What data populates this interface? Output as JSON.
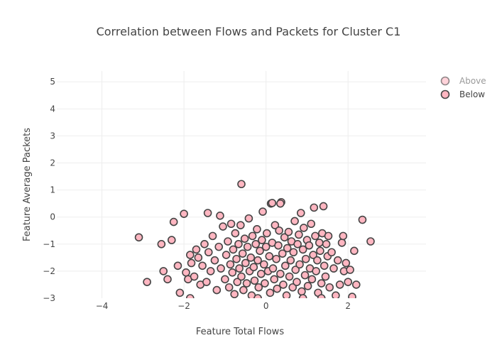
{
  "chart_data": {
    "type": "scatter",
    "title": "Correlation between Flows and Packets for Cluster C1",
    "xlabel": "Feature Total Flows",
    "ylabel": "Feature Average Packets",
    "xlim": [
      -5.1,
      3.9
    ],
    "ylim": [
      -3,
      5.4
    ],
    "xticks": [
      -4,
      -2,
      0,
      2
    ],
    "yticks": [
      -3,
      -2,
      -1,
      0,
      1,
      2,
      3,
      4,
      5
    ],
    "grid": true,
    "legend_position": "top-right",
    "marker_fill": "#ffb6c1",
    "marker_edge": "#444444",
    "series": [
      {
        "name": "Above",
        "opacity": 0.6,
        "points": []
      },
      {
        "name": "Below",
        "opacity": 1,
        "points": [
          [
            -3.1,
            -0.75
          ],
          [
            -2.9,
            -2.4
          ],
          [
            -2.55,
            -1.0
          ],
          [
            -2.5,
            -2.0
          ],
          [
            -2.4,
            -2.3
          ],
          [
            -2.3,
            -0.85
          ],
          [
            -2.25,
            -0.18
          ],
          [
            -2.15,
            -1.8
          ],
          [
            -2.1,
            -2.8
          ],
          [
            -2.0,
            0.12
          ],
          [
            -1.95,
            -2.05
          ],
          [
            -1.9,
            -2.3
          ],
          [
            -1.85,
            -1.4
          ],
          [
            -1.82,
            -1.7
          ],
          [
            -1.75,
            -2.2
          ],
          [
            -1.7,
            -1.2
          ],
          [
            -1.65,
            -1.5
          ],
          [
            -1.6,
            -2.5
          ],
          [
            -1.55,
            -1.8
          ],
          [
            -1.5,
            -1.0
          ],
          [
            -1.45,
            -2.4
          ],
          [
            -1.42,
            0.15
          ],
          [
            -1.4,
            -1.3
          ],
          [
            -1.35,
            -2.0
          ],
          [
            -1.3,
            -0.7
          ],
          [
            -1.25,
            -1.6
          ],
          [
            -1.2,
            -2.7
          ],
          [
            -1.15,
            -1.1
          ],
          [
            -1.12,
            0.05
          ],
          [
            -1.1,
            -1.9
          ],
          [
            -1.05,
            -0.35
          ],
          [
            -1.0,
            -2.3
          ],
          [
            -0.97,
            -1.4
          ],
          [
            -0.93,
            -0.9
          ],
          [
            -0.9,
            -2.6
          ],
          [
            -0.87,
            -1.75
          ],
          [
            -0.85,
            -0.25
          ],
          [
            -0.82,
            -2.05
          ],
          [
            -0.8,
            -1.2
          ],
          [
            -0.77,
            -2.85
          ],
          [
            -0.75,
            -0.6
          ],
          [
            -0.72,
            -1.55
          ],
          [
            -0.7,
            -2.4
          ],
          [
            -0.67,
            -1.0
          ],
          [
            -0.65,
            -1.9
          ],
          [
            -0.62,
            -0.3
          ],
          [
            -0.6,
            -2.2
          ],
          [
            -0.57,
            -1.35
          ],
          [
            -0.55,
            -2.7
          ],
          [
            -0.52,
            -0.8
          ],
          [
            -0.5,
            -1.7
          ],
          [
            -0.47,
            -2.45
          ],
          [
            -0.45,
            -1.1
          ],
          [
            -0.42,
            -0.05
          ],
          [
            -0.4,
            -2.0
          ],
          [
            -0.37,
            -1.5
          ],
          [
            -0.35,
            -2.9
          ],
          [
            -0.33,
            -0.7
          ],
          [
            -0.3,
            -1.85
          ],
          [
            -0.28,
            -2.35
          ],
          [
            -0.25,
            -1.0
          ],
          [
            -0.22,
            -0.45
          ],
          [
            -0.2,
            -1.6
          ],
          [
            -0.18,
            -2.6
          ],
          [
            -0.15,
            -1.25
          ],
          [
            -0.12,
            -2.1
          ],
          [
            -0.1,
            -0.85
          ],
          [
            -0.08,
            0.2
          ],
          [
            -0.05,
            -1.75
          ],
          [
            -0.03,
            -2.45
          ],
          [
            0.0,
            -1.1
          ],
          [
            0.02,
            -0.6
          ],
          [
            0.05,
            -2.0
          ],
          [
            0.08,
            -1.45
          ],
          [
            0.1,
            -2.8
          ],
          [
            0.12,
            0.5
          ],
          [
            0.15,
            -0.95
          ],
          [
            0.17,
            -1.9
          ],
          [
            0.2,
            -2.3
          ],
          [
            0.22,
            -0.3
          ],
          [
            0.25,
            -1.55
          ],
          [
            0.27,
            -2.65
          ],
          [
            0.3,
            -1.05
          ],
          [
            0.32,
            -0.5
          ],
          [
            0.35,
            -2.1
          ],
          [
            0.37,
            0.55
          ],
          [
            0.4,
            -1.35
          ],
          [
            0.42,
            -2.5
          ],
          [
            0.45,
            -0.75
          ],
          [
            0.47,
            -1.8
          ],
          [
            0.5,
            -2.9
          ],
          [
            0.52,
            -1.15
          ],
          [
            0.55,
            -0.55
          ],
          [
            0.57,
            -2.2
          ],
          [
            0.6,
            -1.6
          ],
          [
            0.62,
            -0.9
          ],
          [
            0.65,
            -2.6
          ],
          [
            0.67,
            -1.3
          ],
          [
            0.7,
            -0.15
          ],
          [
            0.72,
            -1.95
          ],
          [
            0.75,
            -2.4
          ],
          [
            0.77,
            -1.0
          ],
          [
            0.8,
            -0.65
          ],
          [
            0.82,
            -1.75
          ],
          [
            0.85,
            0.15
          ],
          [
            0.87,
            -2.75
          ],
          [
            0.9,
            -1.2
          ],
          [
            0.92,
            -0.4
          ],
          [
            0.95,
            -2.15
          ],
          [
            0.97,
            -1.55
          ],
          [
            1.0,
            -0.85
          ],
          [
            1.02,
            -2.55
          ],
          [
            1.05,
            -1.05
          ],
          [
            1.07,
            -1.9
          ],
          [
            1.1,
            -0.25
          ],
          [
            1.12,
            -2.3
          ],
          [
            1.15,
            -1.4
          ],
          [
            1.17,
            0.35
          ],
          [
            1.2,
            -0.7
          ],
          [
            1.22,
            -2.0
          ],
          [
            1.25,
            -1.6
          ],
          [
            1.27,
            -2.8
          ],
          [
            1.3,
            -0.95
          ],
          [
            1.32,
            -1.25
          ],
          [
            1.35,
            -2.45
          ],
          [
            1.37,
            -0.6
          ],
          [
            1.4,
            0.4
          ],
          [
            1.42,
            -1.8
          ],
          [
            1.45,
            -2.2
          ],
          [
            1.47,
            -1.0
          ],
          [
            1.5,
            -1.45
          ],
          [
            1.52,
            -0.7
          ],
          [
            1.55,
            -2.6
          ],
          [
            1.6,
            -1.3
          ],
          [
            1.65,
            -1.9
          ],
          [
            1.7,
            -2.9
          ],
          [
            1.75,
            -1.6
          ],
          [
            1.8,
            -2.5
          ],
          [
            1.85,
            -0.95
          ],
          [
            1.88,
            -0.7
          ],
          [
            1.9,
            -2.0
          ],
          [
            1.95,
            -1.7
          ],
          [
            2.0,
            -2.4
          ],
          [
            2.05,
            -1.95
          ],
          [
            2.1,
            -2.95
          ],
          [
            2.15,
            -1.25
          ],
          [
            2.2,
            -2.5
          ],
          [
            2.35,
            -0.1
          ],
          [
            2.55,
            -0.9
          ],
          [
            -0.6,
            1.22
          ],
          [
            0.15,
            0.52
          ],
          [
            0.35,
            0.5
          ],
          [
            -1.85,
            -3.0
          ],
          [
            1.35,
            -3.0
          ],
          [
            -0.2,
            -3.0
          ],
          [
            0.9,
            -3.0
          ]
        ]
      }
    ]
  }
}
